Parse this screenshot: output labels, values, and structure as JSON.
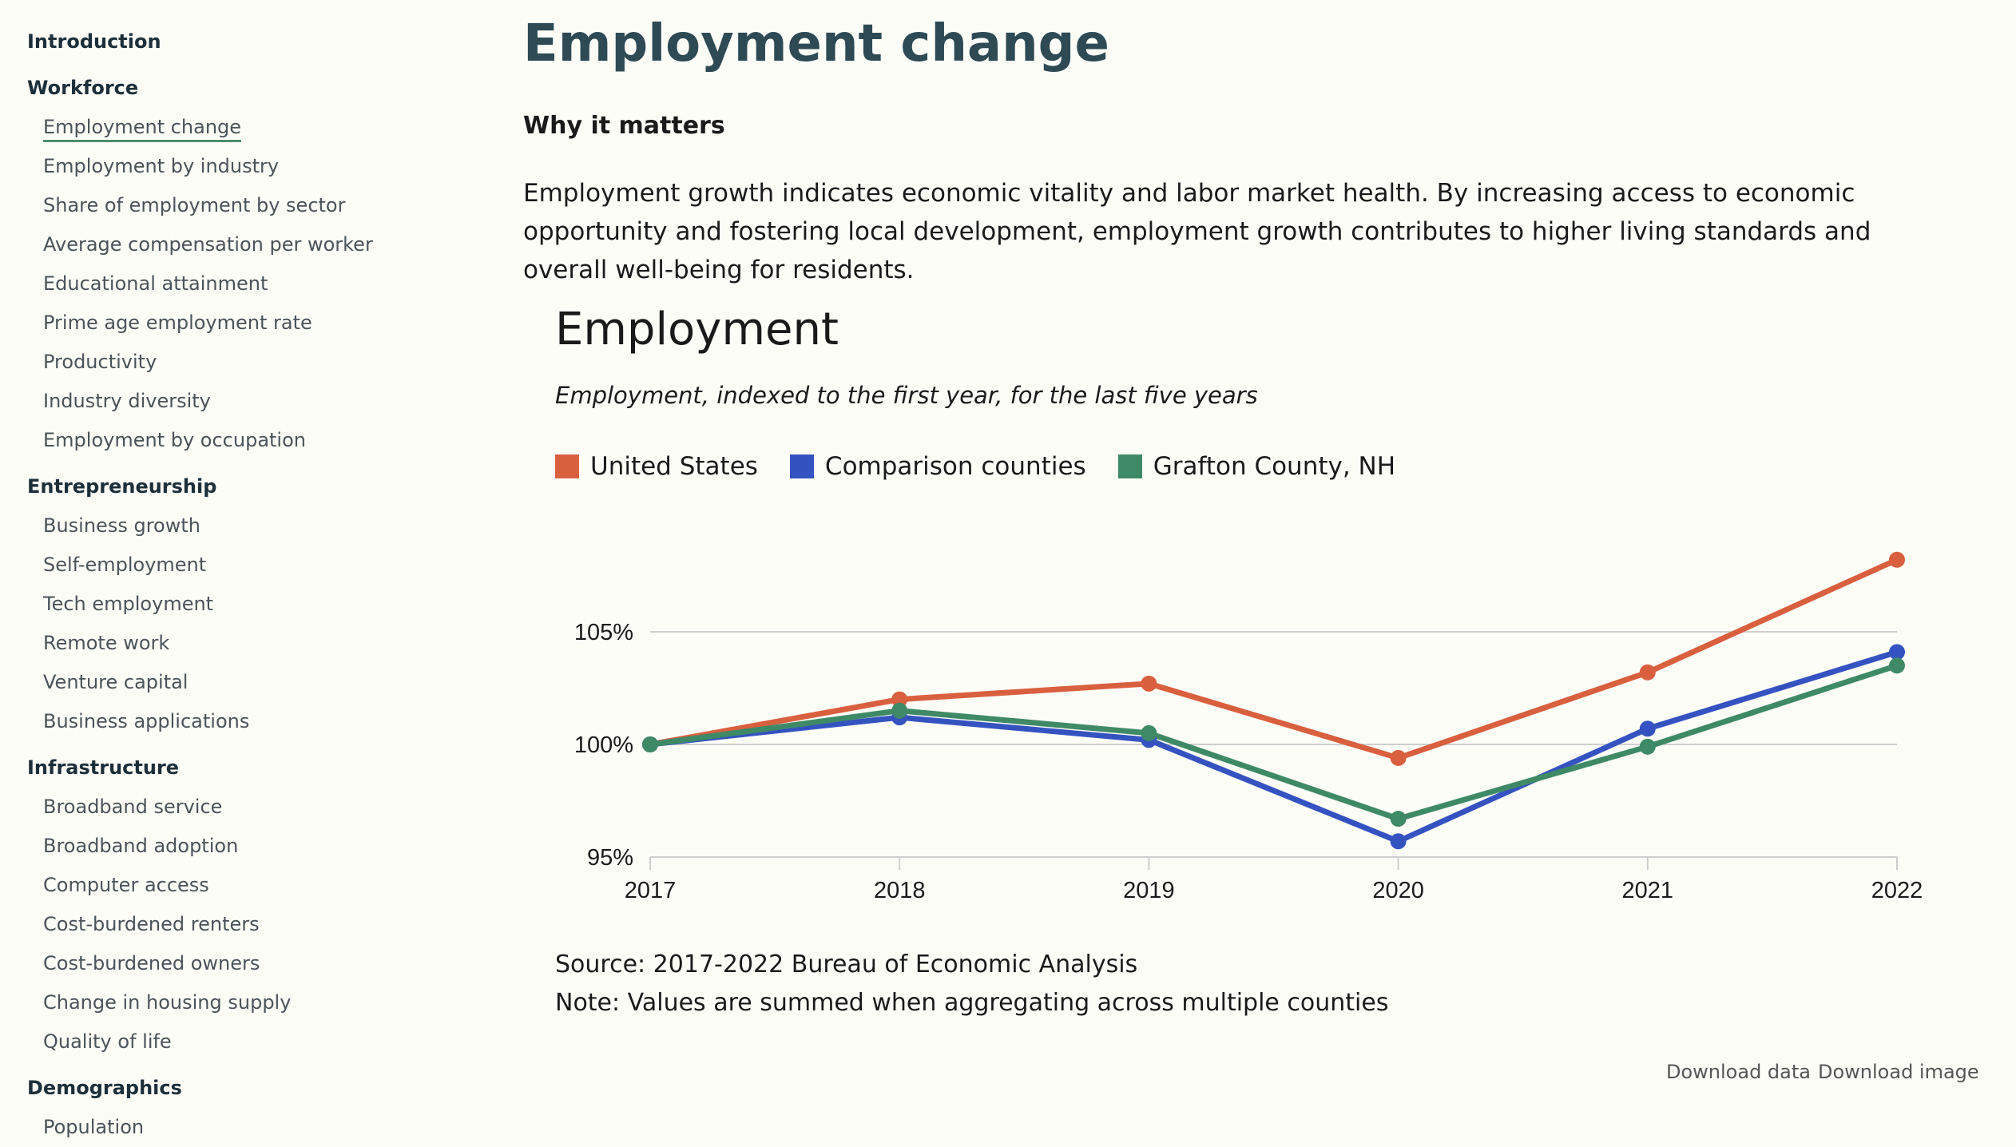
{
  "sidebar": {
    "sections": [
      {
        "label": "Introduction",
        "items": []
      },
      {
        "label": "Workforce",
        "items": [
          "Employment change",
          "Employment by industry",
          "Share of employment by sector",
          "Average compensation per worker",
          "Educational attainment",
          "Prime age employment rate",
          "Productivity",
          "Industry diversity",
          "Employment by occupation"
        ]
      },
      {
        "label": "Entrepreneurship",
        "items": [
          "Business growth",
          "Self-employment",
          "Tech employment",
          "Remote work",
          "Venture capital",
          "Business applications"
        ]
      },
      {
        "label": "Infrastructure",
        "items": [
          "Broadband service",
          "Broadband adoption",
          "Computer access",
          "Cost-burdened renters",
          "Cost-burdened owners",
          "Change in housing supply",
          "Quality of life"
        ]
      },
      {
        "label": "Demographics",
        "items": [
          "Population"
        ]
      }
    ],
    "active": "Employment change"
  },
  "page": {
    "title": "Employment change",
    "why_heading": "Why it matters",
    "why_text": "Employment growth indicates economic vitality and labor market health. By increasing access to economic opportunity and fostering local development, employment growth contributes to higher living standards and overall well-being for residents."
  },
  "chart_data": {
    "type": "line",
    "title": "Employment",
    "subtitle": "Employment, indexed to the first year, for the last five years",
    "categories": [
      "2017",
      "2018",
      "2019",
      "2020",
      "2021",
      "2022"
    ],
    "y_ticks": [
      "95%",
      "100%",
      "105%"
    ],
    "ylim": [
      95,
      108.5
    ],
    "grid": true,
    "legend_position": "top-left",
    "series": [
      {
        "name": "United States",
        "color": "#d9603f",
        "values": [
          100,
          102.0,
          102.7,
          99.4,
          103.2,
          108.2
        ]
      },
      {
        "name": "Comparison counties",
        "color": "#3553c0",
        "values": [
          100,
          101.2,
          100.2,
          95.7,
          100.7,
          104.1
        ]
      },
      {
        "name": "Grafton County, NH",
        "color": "#3f8a66",
        "values": [
          100,
          101.5,
          100.5,
          96.7,
          99.9,
          103.5
        ]
      }
    ]
  },
  "footer": {
    "source": "Source: 2017-2022 Bureau of Economic Analysis",
    "note": "Note: Values are summed when aggregating across multiple counties",
    "download_data": "Download data",
    "download_image": "Download image"
  }
}
